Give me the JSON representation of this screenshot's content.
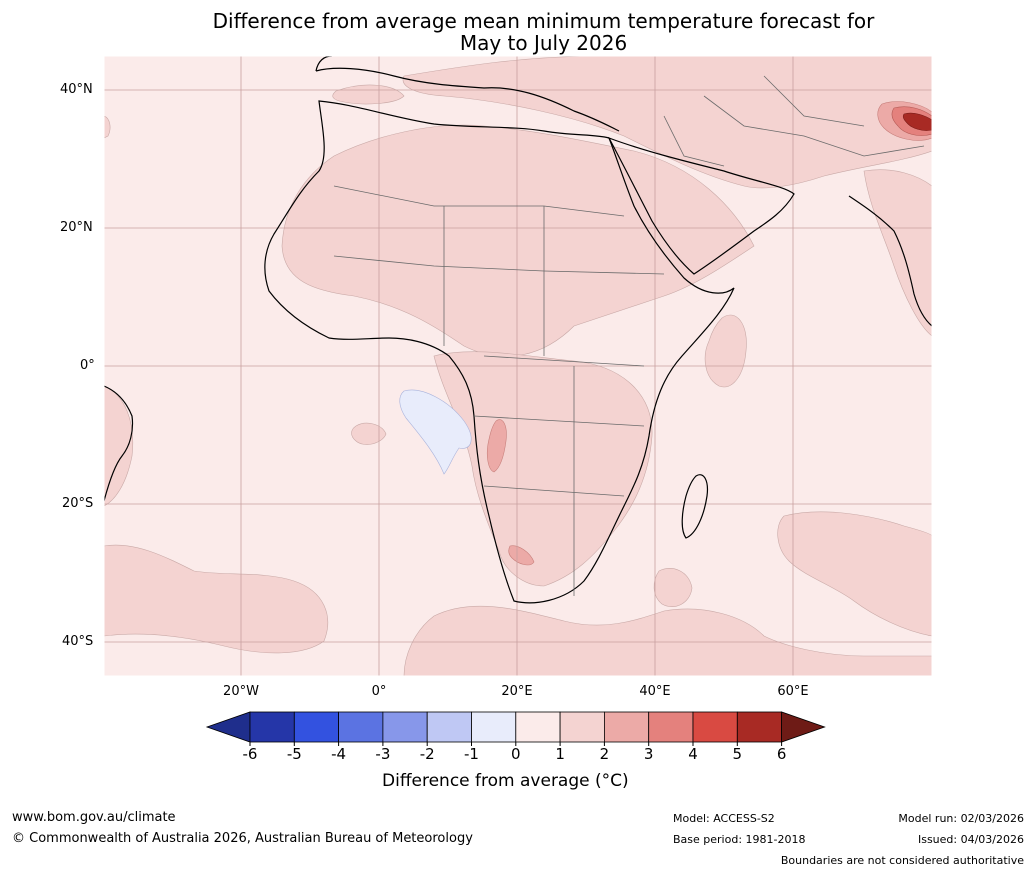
{
  "title": {
    "line1": "Difference from average mean minimum temperature forecast for",
    "line2": "May to July 2026"
  },
  "axes": {
    "lat_labels": [
      "40°N",
      "20°N",
      "0°",
      "20°S",
      "40°S"
    ],
    "lon_labels": [
      "20°W",
      "0°",
      "20°E",
      "40°E",
      "60°E"
    ]
  },
  "colorbar": {
    "title": "Difference from average (°C)",
    "ticks": [
      "-6",
      "-5",
      "-4",
      "-3",
      "-2",
      "-1",
      "0",
      "1",
      "2",
      "3",
      "4",
      "5",
      "6"
    ],
    "colors": [
      "#1f2e8c",
      "#2536a8",
      "#3352e0",
      "#5b73e2",
      "#8797ea",
      "#bfc8f4",
      "#e8ecfb",
      "#fbebea",
      "#f4d3d1",
      "#ecaaa7",
      "#e4817d",
      "#d94a42",
      "#a82a24",
      "#6e1b16"
    ]
  },
  "footer": {
    "url": "www.bom.gov.au/climate",
    "copyright": "© Commonwealth of Australia 2026, Australian Bureau of Meteorology",
    "model": "Model: ACCESS-S2",
    "base_period": "Base period: 1981-2018",
    "model_run": "Model run: 02/03/2026",
    "issued": "Issued: 04/03/2026",
    "disclaimer": "Boundaries are not considered authoritative"
  }
}
